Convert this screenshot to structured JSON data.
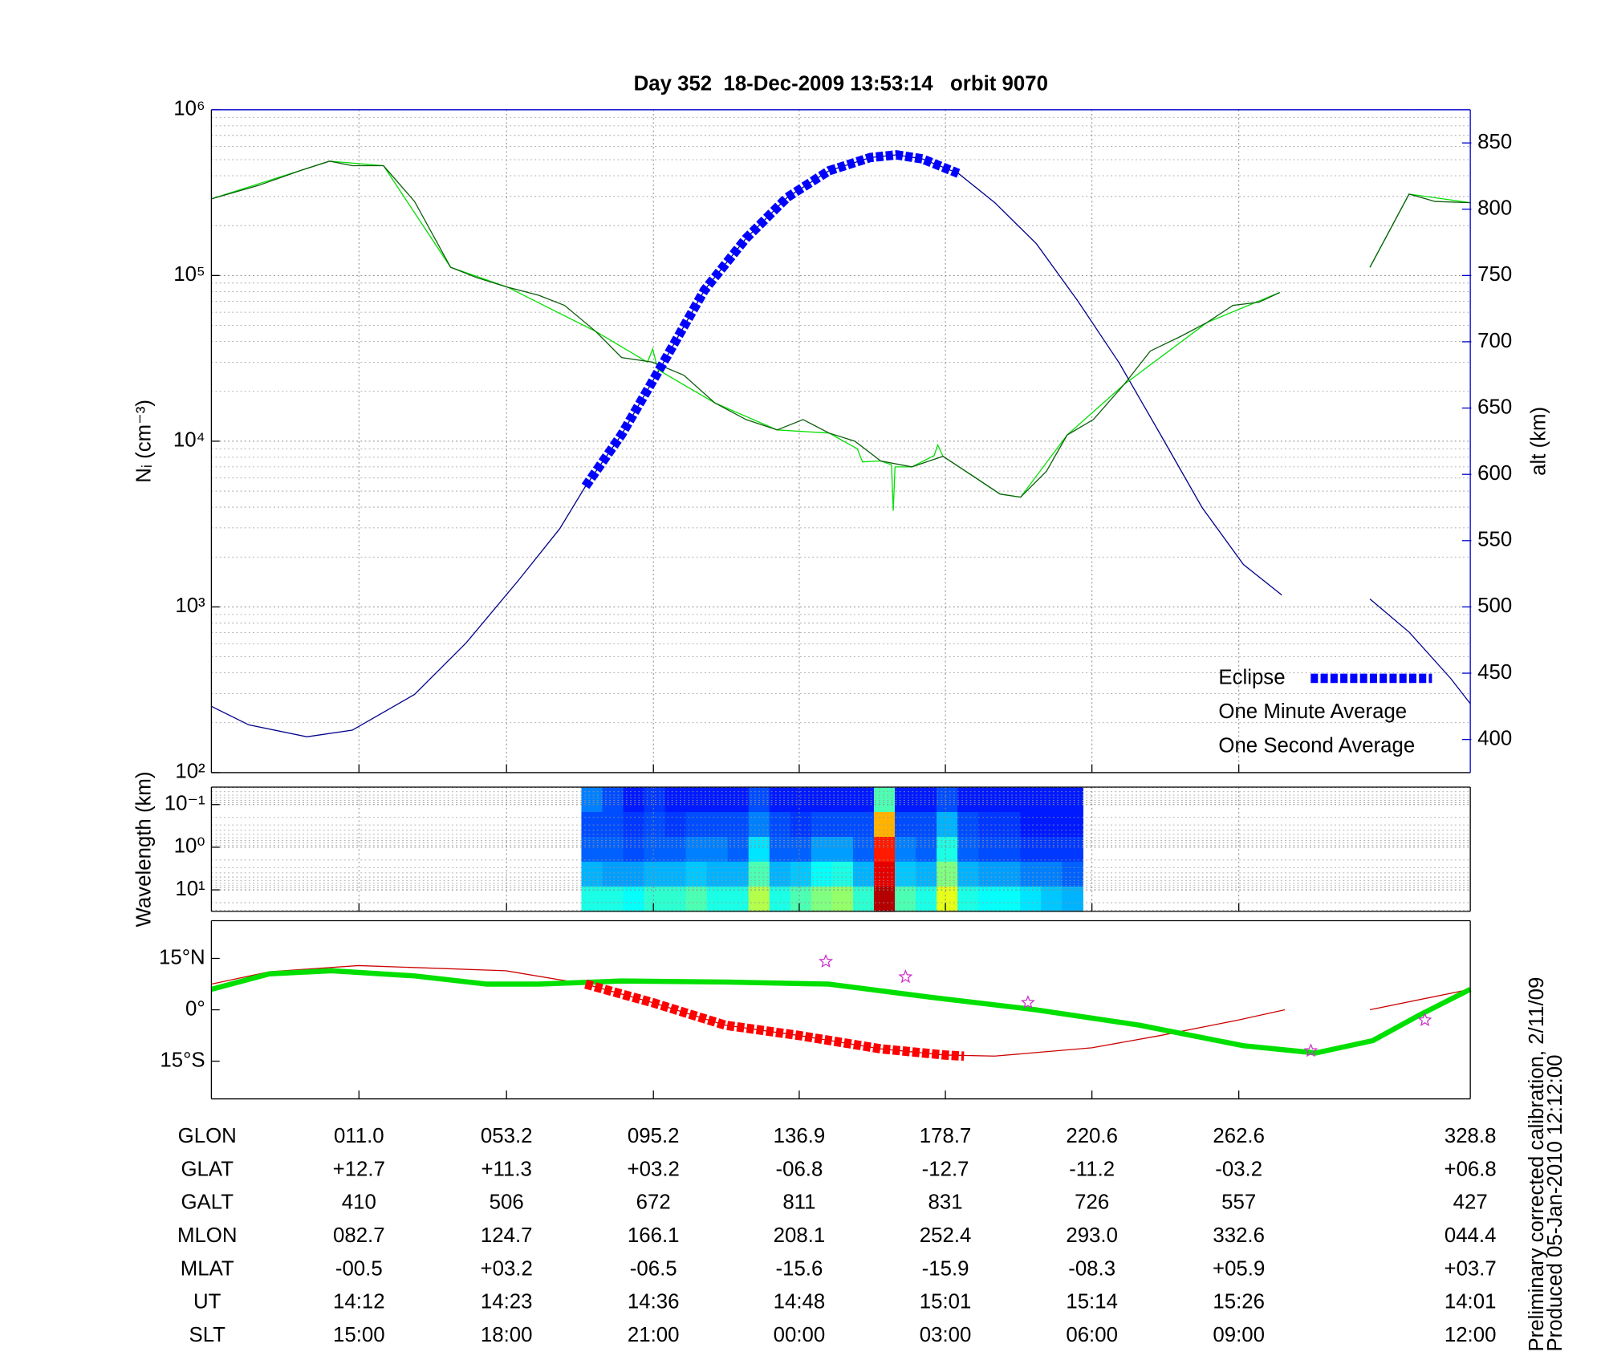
{
  "chart_data": [
    {
      "type": "line",
      "title": "Day 352  18-Dec-2009 13:53:14   orbit 9070",
      "ylabel": "Nᵢ (cm⁻³)",
      "y2label": "alt (km)",
      "xlim": [
        -31.2,
        328.8
      ],
      "xticks": [
        11.0,
        53.2,
        95.2,
        136.9,
        178.7,
        220.6,
        262.6
      ],
      "ylim": [
        100,
        1000000
      ],
      "log_y": true,
      "yticks": [
        {
          "value": 100,
          "label": "10²"
        },
        {
          "value": 1000,
          "label": "10³"
        },
        {
          "value": 10000,
          "label": "10⁴"
        },
        {
          "value": 100000,
          "label": "10⁵"
        },
        {
          "value": 1000000,
          "label": "10⁶"
        }
      ],
      "y2lim": [
        375,
        875
      ],
      "y2ticks": [
        400,
        450,
        500,
        550,
        600,
        650,
        700,
        750,
        800,
        850
      ],
      "grid": true,
      "legend": "lower right",
      "series": [
        {
          "name": "Eclipse",
          "color": "#0000ff",
          "axis": "y2",
          "marker": "square",
          "x": [
            75.8,
            86.1,
            98.0,
            109.8,
            121.7,
            133.5,
            145.4,
            157.2,
            164.7,
            172.1,
            182.4
          ],
          "values": [
            591,
            630,
            684,
            739,
            778,
            809,
            829,
            839,
            841,
            838,
            827
          ]
        },
        {
          "name": "One Minute Average",
          "color": "#0b5d0b",
          "marker": "line",
          "x": [
            -31.2,
            -17.6,
            -5.7,
            2.6,
            9.1,
            18.0,
            26.9,
            37.2,
            44.7,
            53.5,
            62.4,
            69.8,
            78.7,
            86.1,
            95.0,
            103.9,
            112.8,
            121.7,
            130.6,
            138.0,
            145.4,
            152.8,
            160.2,
            169.1,
            178.0,
            186.9,
            194.3,
            200.2,
            207.6,
            213.5,
            221.0,
            229.8,
            237.3,
            246.1,
            253.5,
            260.9,
            268.4,
            274.3,
            287.0,
            300.1,
            311.3,
            318.7,
            328.8
          ],
          "values": [
            290000,
            350000,
            430000,
            490000,
            460000,
            460000,
            280000,
            112000,
            97000,
            85000,
            76000,
            66000,
            46000,
            32000,
            30000,
            25000,
            17000,
            13500,
            11700,
            13500,
            11200,
            10000,
            7600,
            7000,
            8100,
            6100,
            4800,
            4600,
            6600,
            10900,
            13500,
            22000,
            35000,
            43000,
            52000,
            66000,
            69000,
            79000,
            null,
            112000,
            310000,
            280000,
            275000
          ]
        },
        {
          "name": "One Second Average",
          "color": "#00e000",
          "marker": "line",
          "x": [
            -31.2,
            2.6,
            18.0,
            37.2,
            53.5,
            78.7,
            93.5,
            95.0,
            96.5,
            112.8,
            130.6,
            145.4,
            153.5,
            155.0,
            160.2,
            163.3,
            163.8,
            164.3,
            169.1,
            175.5,
            176.5,
            178.0,
            194.3,
            200.2,
            213.5,
            229.8,
            253.5,
            274.3,
            287.0,
            300.1,
            311.3,
            328.8
          ],
          "values": [
            290000,
            490000,
            460000,
            112000,
            85000,
            46000,
            30000,
            36000,
            27000,
            17000,
            11700,
            11200,
            9000,
            7500,
            7600,
            7200,
            3800,
            7000,
            7000,
            8200,
            9500,
            8100,
            4800,
            4600,
            10900,
            22000,
            52000,
            79000,
            null,
            112000,
            310000,
            275000
          ]
        },
        {
          "color": "#00008b",
          "axis": "y2",
          "marker": "line",
          "x": [
            -31.2,
            -20.5,
            -3.9,
            9.1,
            26.9,
            41.7,
            56.6,
            68.4,
            75.8,
            86.1,
            98.0,
            109.8,
            121.7,
            133.5,
            145.4,
            157.2,
            164.7,
            172.1,
            182.4,
            192.8,
            204.7,
            216.5,
            228.4,
            240.2,
            252.1,
            263.9,
            274.9,
            287.0,
            300.1,
            311.3,
            323.2,
            328.8
          ],
          "values": [
            425,
            411,
            402,
            407,
            434,
            473,
            520,
            559,
            591,
            630,
            684,
            739,
            778,
            809,
            829,
            839,
            841,
            838,
            827,
            805,
            774,
            731,
            684,
            630,
            575,
            532,
            509,
            null,
            506,
            481,
            446,
            427
          ]
        }
      ]
    },
    {
      "type": "heatmap",
      "ylabel": "Wavelength (km)",
      "xlim": [
        -31.2,
        328.8
      ],
      "xticks": [
        11.0,
        53.2,
        95.2,
        136.9,
        178.7,
        220.6,
        262.6
      ],
      "ylim": [
        32,
        0.039
      ],
      "log_y": true,
      "yticks": [
        {
          "value": 0.1,
          "label": "10⁻¹"
        },
        {
          "value": 1,
          "label": "10⁰"
        },
        {
          "value": 10,
          "label": "10¹"
        }
      ],
      "grid": true,
      "image_x": [
        74.6,
        218.0
      ],
      "z": [
        [
          0.25,
          0.2,
          0.15,
          0.18,
          0.15,
          0.15,
          0.15,
          0.15,
          0.2,
          0.15,
          0.15,
          0.15,
          0.15,
          0.15,
          0.45,
          0.15,
          0.15,
          0.2,
          0.15,
          0.15,
          0.15,
          0.15,
          0.15,
          0.15
        ],
        [
          0.2,
          0.2,
          0.18,
          0.2,
          0.18,
          0.2,
          0.2,
          0.2,
          0.25,
          0.2,
          0.18,
          0.2,
          0.2,
          0.2,
          0.7,
          0.2,
          0.2,
          0.3,
          0.2,
          0.18,
          0.18,
          0.15,
          0.15,
          0.15
        ],
        [
          0.22,
          0.22,
          0.2,
          0.22,
          0.22,
          0.25,
          0.25,
          0.22,
          0.35,
          0.22,
          0.22,
          0.28,
          0.28,
          0.22,
          0.85,
          0.25,
          0.22,
          0.4,
          0.22,
          0.2,
          0.2,
          0.18,
          0.18,
          0.18
        ],
        [
          0.3,
          0.28,
          0.28,
          0.3,
          0.3,
          0.32,
          0.3,
          0.3,
          0.45,
          0.3,
          0.32,
          0.38,
          0.4,
          0.3,
          0.9,
          0.32,
          0.3,
          0.5,
          0.3,
          0.28,
          0.28,
          0.25,
          0.25,
          0.22
        ],
        [
          0.4,
          0.4,
          0.38,
          0.42,
          0.42,
          0.45,
          0.4,
          0.4,
          0.55,
          0.4,
          0.45,
          0.5,
          0.52,
          0.42,
          0.95,
          0.45,
          0.4,
          0.6,
          0.4,
          0.38,
          0.38,
          0.35,
          0.32,
          0.3
        ]
      ]
    },
    {
      "type": "map",
      "xlim": [
        -31.2,
        328.8
      ],
      "xticks": [
        11.0,
        53.2,
        95.2,
        136.9,
        178.7,
        220.6,
        262.6
      ],
      "ylim": [
        -26,
        26
      ],
      "yticks": [
        {
          "value": 15,
          "label": "15°N"
        },
        {
          "value": 0,
          "label": "0°"
        },
        {
          "value": -15,
          "label": "15°S"
        }
      ],
      "grid": false,
      "series": [
        {
          "color": "#cc0000",
          "marker": "line",
          "x": [
            -31.2,
            -14.6,
            10.9,
            53.0,
            75.8,
            95.0,
            115.8,
            136.8,
            160.2,
            178.6,
            192.8,
            220.6,
            240.2,
            262.4,
            275.8,
            287.0,
            300.1,
            328.8
          ],
          "values": [
            7.5,
            11.1,
            12.9,
            11.4,
            7.5,
            2.1,
            -4.5,
            -7.5,
            -11.4,
            -13.2,
            -13.5,
            -11.1,
            -7.5,
            -3.0,
            0,
            null,
            0,
            6.0
          ]
        },
        {
          "color": "#00e000",
          "marker": "thick-line",
          "x": [
            -31.2,
            -14.6,
            3.2,
            26.9,
            47.6,
            62.4,
            86.1,
            115.8,
            145.4,
            175.0,
            204.6,
            234.3,
            263.9,
            284.6,
            300.9,
            314.3,
            328.8
          ],
          "values": [
            6.0,
            10.5,
            11.4,
            9.9,
            7.5,
            7.5,
            8.4,
            8.1,
            7.5,
            3.6,
            0,
            -4.5,
            -10.5,
            -12.6,
            -9.0,
            -1.5,
            6.0
          ]
        },
        {
          "color": "#ff0000",
          "marker": "square",
          "x": [
            75.8,
            95.0,
            115.8,
            136.8,
            160.2,
            178.6,
            184.0
          ],
          "values": [
            7.5,
            2.1,
            -4.5,
            -7.5,
            -11.4,
            -13.2,
            -13.5
          ]
        },
        {
          "color": "#cc33cc",
          "marker": "star",
          "x": [
            144.5,
            167.3,
            202.3,
            283.2,
            315.8
          ],
          "values": [
            14.1,
            9.6,
            2.1,
            -12.0,
            -3.0
          ]
        }
      ]
    }
  ],
  "ephemeris": {
    "rows": [
      {
        "label": "GLON",
        "cells": [
          "011.0",
          "053.2",
          "095.2",
          "136.9",
          "178.7",
          "220.6",
          "262.6",
          "328.8"
        ]
      },
      {
        "label": "GLAT",
        "cells": [
          "+12.7",
          "+11.3",
          "+03.2",
          "-06.8",
          "-12.7",
          "-11.2",
          "-03.2",
          "+06.8"
        ]
      },
      {
        "label": "GALT",
        "cells": [
          "410",
          "506",
          "672",
          "811",
          "831",
          "726",
          "557",
          "427"
        ]
      },
      {
        "label": "MLON",
        "cells": [
          "082.7",
          "124.7",
          "166.1",
          "208.1",
          "252.4",
          "293.0",
          "332.6",
          "044.4"
        ]
      },
      {
        "label": "MLAT",
        "cells": [
          "-00.5",
          "+03.2",
          "-06.5",
          "-15.6",
          "-15.9",
          "-08.3",
          "+05.9",
          "+03.7"
        ]
      },
      {
        "label": "UT",
        "cells": [
          "14:12",
          "14:23",
          "14:36",
          "14:48",
          "15:01",
          "15:14",
          "15:26",
          "14:01"
        ]
      },
      {
        "label": "SLT",
        "cells": [
          "15:00",
          "18:00",
          "21:00",
          "00:00",
          "03:00",
          "06:00",
          "09:00",
          "12:00"
        ]
      }
    ]
  },
  "footnotes": [
    "Preliminary corrected calibration, 2/11/09",
    "Produced 05-Jan-2010 12:12:00"
  ]
}
